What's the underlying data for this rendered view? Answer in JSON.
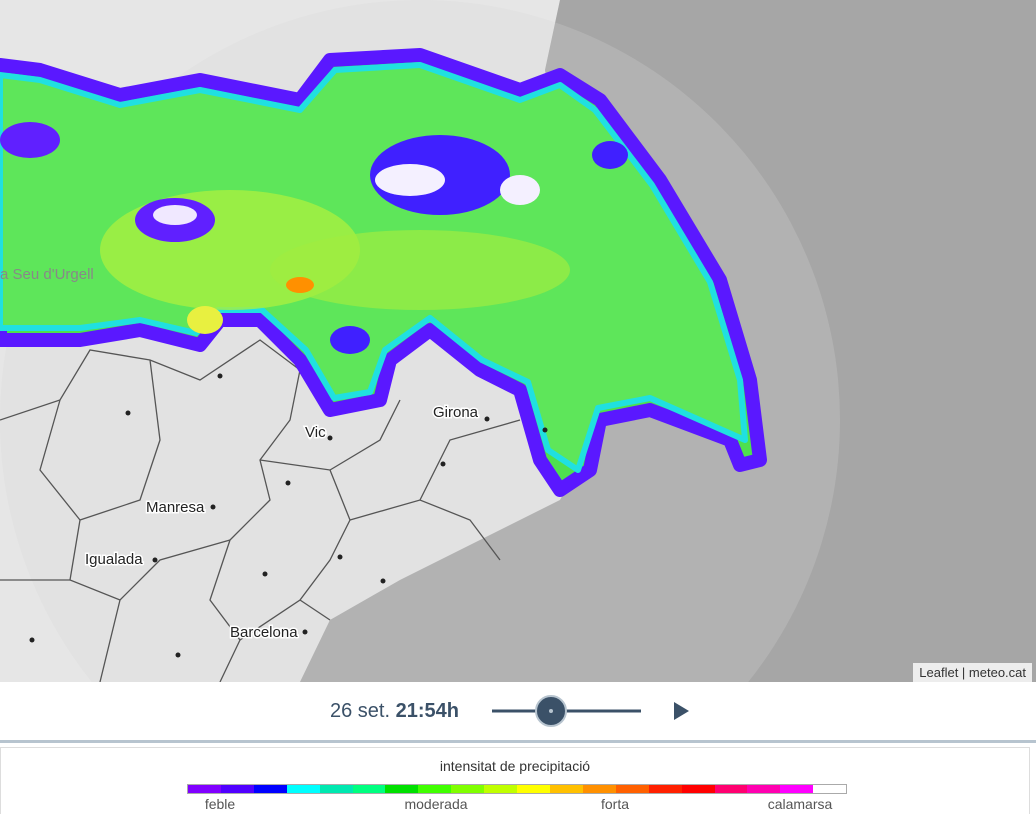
{
  "map": {
    "places": [
      "a Seu d'Urgell",
      "Vic",
      "Girona",
      "Manresa",
      "Igualada",
      "Barcelona"
    ],
    "attribution": "Leaflet | meteo.cat"
  },
  "player": {
    "date": "26 set.",
    "time": "21:54h"
  },
  "legend": {
    "title": "intensitat de precipitació",
    "labels": [
      "feble",
      "moderada",
      "forta",
      "calamarsa"
    ],
    "colors": [
      "#8000ff",
      "#5000ff",
      "#0000ff",
      "#00ffff",
      "#00e8b0",
      "#00ff80",
      "#00e000",
      "#40ff00",
      "#80ff00",
      "#c0ff00",
      "#ffff00",
      "#ffc000",
      "#ff9000",
      "#ff6000",
      "#ff2000",
      "#ff0000",
      "#ff0070",
      "#ff00b0",
      "#ff00ff",
      "#ffffff"
    ]
  }
}
